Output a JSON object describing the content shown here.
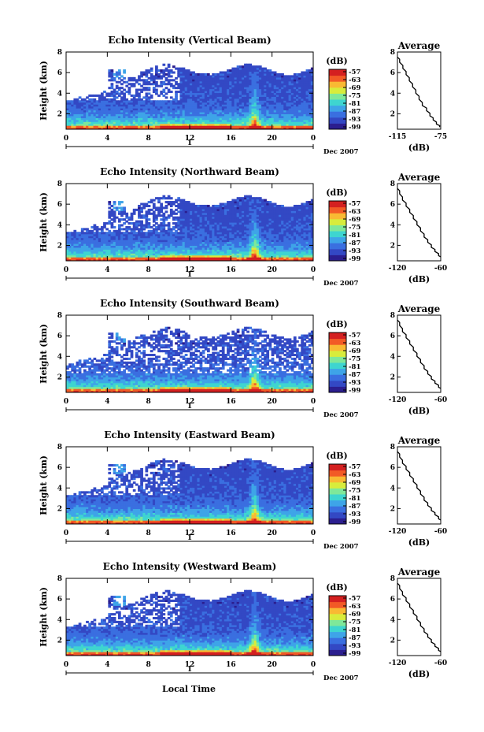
{
  "figure": {
    "xlabel": "Local Time",
    "date_label": "Dec 2007",
    "day_label": "1"
  },
  "colors": {
    "scale": [
      "#2b1e8f",
      "#3348c4",
      "#3a6fe0",
      "#3ea4e8",
      "#3ed5d0",
      "#7fe89a",
      "#d8ec3c",
      "#f9b933",
      "#f25a26",
      "#d42020"
    ]
  },
  "chart_data": [
    {
      "type": "heatmap",
      "title": "Echo Intensity (Vertical Beam)",
      "ylabel": "Height (km)",
      "x_ticks": [
        "0",
        "4",
        "8",
        "12",
        "16",
        "20",
        "0"
      ],
      "y_ticks": [
        "2",
        "4",
        "6",
        "8"
      ],
      "xlim": [
        0,
        24
      ],
      "ylim": [
        0.5,
        8
      ],
      "colorbar": {
        "label": "(dB)",
        "ticks": [
          "-57",
          "-63",
          "-69",
          "-75",
          "-81",
          "-87",
          "-93",
          "-99"
        ],
        "range": [
          -99,
          -57
        ]
      },
      "average": {
        "title": "Average",
        "xlabel": "(dB)",
        "x_ticks": [
          "-115",
          "-75"
        ],
        "xlim": [
          -115,
          -75
        ],
        "x": [
          -116,
          -113,
          -110,
          -107,
          -104,
          -101,
          -98,
          -95,
          -92,
          -88,
          -85,
          -82,
          -79,
          -76
        ],
        "y": [
          7.6,
          7.0,
          6.4,
          5.8,
          5.2,
          4.6,
          4.0,
          3.4,
          2.8,
          2.3,
          1.8,
          1.4,
          1.0,
          0.7
        ]
      }
    },
    {
      "type": "heatmap",
      "title": "Echo Intensity (Northward Beam)",
      "ylabel": "Height (km)",
      "x_ticks": [
        "0",
        "4",
        "8",
        "12",
        "16",
        "20",
        "0"
      ],
      "y_ticks": [
        "2",
        "4",
        "6",
        "8"
      ],
      "xlim": [
        0,
        24
      ],
      "ylim": [
        0.5,
        8
      ],
      "colorbar": {
        "label": "(dB)",
        "ticks": [
          "-57",
          "-63",
          "-69",
          "-75",
          "-81",
          "-87",
          "-93",
          "-99"
        ],
        "range": [
          -99,
          -57
        ]
      },
      "average": {
        "title": "Average",
        "xlabel": "(dB)",
        "x_ticks": [
          "-120",
          "-60"
        ],
        "xlim": [
          -120,
          -60
        ],
        "x": [
          -121,
          -117,
          -113,
          -108,
          -103,
          -98,
          -93,
          -88,
          -83,
          -78,
          -73,
          -68,
          -63,
          -59
        ],
        "y": [
          7.6,
          7.0,
          6.4,
          5.8,
          5.2,
          4.6,
          4.0,
          3.4,
          2.8,
          2.3,
          1.8,
          1.4,
          1.0,
          0.7
        ]
      }
    },
    {
      "type": "heatmap",
      "title": "Echo Intensity (Southward Beam)",
      "ylabel": "Height (km)",
      "x_ticks": [
        "0",
        "4",
        "8",
        "12",
        "16",
        "20",
        "0"
      ],
      "y_ticks": [
        "2",
        "4",
        "6",
        "8"
      ],
      "xlim": [
        0,
        24
      ],
      "ylim": [
        0.5,
        8
      ],
      "colorbar": {
        "label": "(dB)",
        "ticks": [
          "-57",
          "-63",
          "-69",
          "-75",
          "-81",
          "-87",
          "-93",
          "-99"
        ],
        "range": [
          -99,
          -57
        ]
      },
      "average": {
        "title": "Average",
        "xlabel": "(dB)",
        "x_ticks": [
          "-120",
          "-60"
        ],
        "xlim": [
          -120,
          -60
        ],
        "x": [
          -121,
          -117,
          -113,
          -108,
          -103,
          -98,
          -93,
          -88,
          -83,
          -78,
          -73,
          -68,
          -63,
          -59
        ],
        "y": [
          7.6,
          7.0,
          6.4,
          5.8,
          5.2,
          4.6,
          4.0,
          3.4,
          2.8,
          2.3,
          1.8,
          1.4,
          1.0,
          0.7
        ]
      }
    },
    {
      "type": "heatmap",
      "title": "Echo Intensity (Eastward Beam)",
      "ylabel": "Height (km)",
      "x_ticks": [
        "0",
        "4",
        "8",
        "12",
        "16",
        "20",
        "0"
      ],
      "y_ticks": [
        "2",
        "4",
        "6",
        "8"
      ],
      "xlim": [
        0,
        24
      ],
      "ylim": [
        0.5,
        8
      ],
      "colorbar": {
        "label": "(dB)",
        "ticks": [
          "-57",
          "-63",
          "-69",
          "-75",
          "-81",
          "-87",
          "-93",
          "-99"
        ],
        "range": [
          -99,
          -57
        ]
      },
      "average": {
        "title": "Average",
        "xlabel": "(dB)",
        "x_ticks": [
          "-120",
          "-60"
        ],
        "xlim": [
          -120,
          -60
        ],
        "x": [
          -121,
          -117,
          -113,
          -108,
          -103,
          -98,
          -93,
          -88,
          -83,
          -78,
          -73,
          -68,
          -63,
          -59
        ],
        "y": [
          7.6,
          7.0,
          6.4,
          5.8,
          5.2,
          4.6,
          4.0,
          3.4,
          2.8,
          2.3,
          1.8,
          1.4,
          1.0,
          0.7
        ]
      }
    },
    {
      "type": "heatmap",
      "title": "Echo Intensity (Westward Beam)",
      "ylabel": "Height (km)",
      "x_ticks": [
        "0",
        "4",
        "8",
        "12",
        "16",
        "20",
        "0"
      ],
      "y_ticks": [
        "2",
        "4",
        "6",
        "8"
      ],
      "xlim": [
        0,
        24
      ],
      "ylim": [
        0.5,
        8
      ],
      "colorbar": {
        "label": "(dB)",
        "ticks": [
          "-57",
          "-63",
          "-69",
          "-75",
          "-81",
          "-87",
          "-93",
          "-99"
        ],
        "range": [
          -99,
          -57
        ]
      },
      "average": {
        "title": "Average",
        "xlabel": "(dB)",
        "x_ticks": [
          "-120",
          "-60"
        ],
        "xlim": [
          -120,
          -60
        ],
        "x": [
          -121,
          -117,
          -113,
          -108,
          -103,
          -98,
          -93,
          -88,
          -83,
          -78,
          -73,
          -68,
          -63,
          -59
        ],
        "y": [
          7.6,
          7.0,
          6.4,
          5.8,
          5.2,
          4.6,
          4.0,
          3.4,
          2.8,
          2.3,
          1.8,
          1.4,
          1.0,
          0.7
        ]
      }
    }
  ]
}
